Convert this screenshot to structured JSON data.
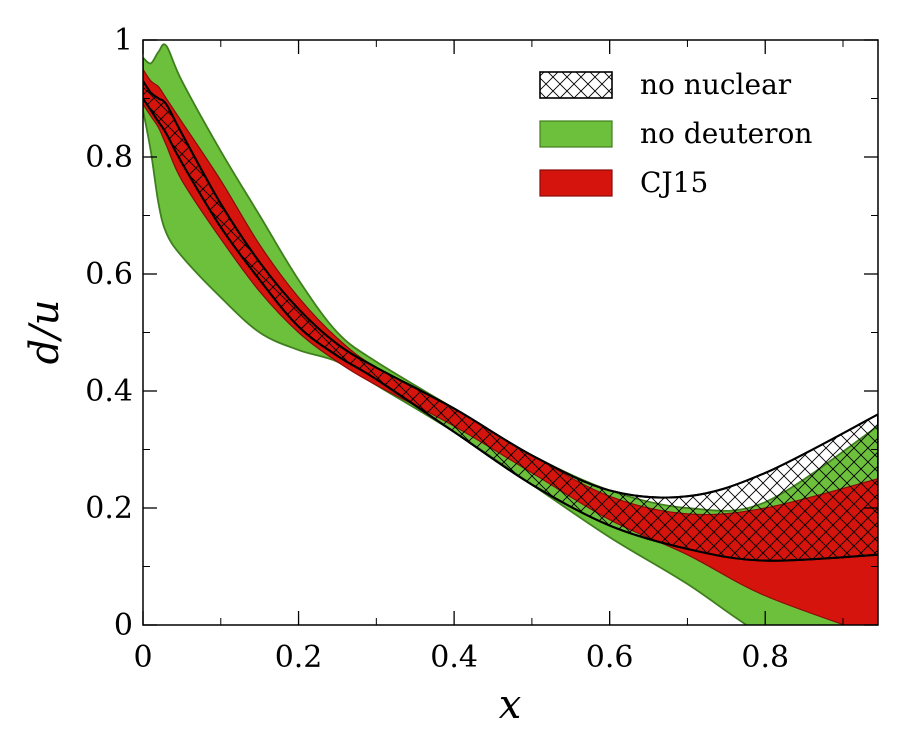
{
  "chart_data": {
    "type": "area",
    "xlabel": "x",
    "ylabel": "d/u",
    "xlim": [
      0,
      0.945
    ],
    "ylim": [
      0,
      1
    ],
    "x_ticks": [
      0,
      0.2,
      0.4,
      0.6,
      0.8
    ],
    "x_tick_labels": [
      "0",
      "0.2",
      "0.4",
      "0.6",
      "0.8"
    ],
    "y_ticks": [
      0,
      0.2,
      0.4,
      0.6,
      0.8,
      1
    ],
    "y_tick_labels": [
      "0",
      "0.2",
      "0.4",
      "0.6",
      "0.8",
      "1"
    ],
    "grid": false,
    "legend_position": "top-right",
    "series": [
      {
        "name": "no deuteron",
        "color": "#6dc03c",
        "style": "filled band",
        "x": [
          0,
          0.01,
          0.02,
          0.03,
          0.05,
          0.1,
          0.15,
          0.2,
          0.25,
          0.3,
          0.4,
          0.5,
          0.6,
          0.7,
          0.8,
          0.945
        ],
        "upper": [
          0.97,
          0.96,
          0.98,
          0.99,
          0.93,
          0.81,
          0.7,
          0.59,
          0.5,
          0.45,
          0.37,
          0.29,
          0.23,
          0.2,
          0.21,
          0.34
        ],
        "lower": [
          0.88,
          0.81,
          0.72,
          0.67,
          0.63,
          0.56,
          0.5,
          0.47,
          0.45,
          0.41,
          0.33,
          0.24,
          0.15,
          0.07,
          -0.02,
          -0.12
        ]
      },
      {
        "name": "CJ15",
        "color": "#d4140d",
        "style": "filled band",
        "x": [
          0,
          0.01,
          0.02,
          0.03,
          0.05,
          0.1,
          0.15,
          0.2,
          0.25,
          0.3,
          0.4,
          0.5,
          0.6,
          0.7,
          0.8,
          0.945
        ],
        "upper": [
          0.95,
          0.93,
          0.92,
          0.9,
          0.86,
          0.76,
          0.65,
          0.56,
          0.49,
          0.44,
          0.37,
          0.29,
          0.22,
          0.19,
          0.2,
          0.25
        ],
        "lower": [
          0.89,
          0.87,
          0.85,
          0.82,
          0.76,
          0.66,
          0.57,
          0.5,
          0.45,
          0.41,
          0.34,
          0.26,
          0.18,
          0.12,
          0.05,
          -0.02
        ]
      },
      {
        "name": "no nuclear",
        "color": "#000000",
        "style": "hatched band",
        "x": [
          0,
          0.01,
          0.02,
          0.03,
          0.05,
          0.1,
          0.15,
          0.2,
          0.25,
          0.3,
          0.4,
          0.5,
          0.6,
          0.7,
          0.8,
          0.945
        ],
        "upper": [
          0.93,
          0.91,
          0.9,
          0.89,
          0.84,
          0.72,
          0.62,
          0.54,
          0.48,
          0.44,
          0.37,
          0.29,
          0.23,
          0.22,
          0.26,
          0.36
        ],
        "lower": [
          0.9,
          0.88,
          0.86,
          0.84,
          0.79,
          0.68,
          0.59,
          0.51,
          0.46,
          0.42,
          0.33,
          0.24,
          0.17,
          0.13,
          0.11,
          0.12
        ]
      }
    ]
  }
}
